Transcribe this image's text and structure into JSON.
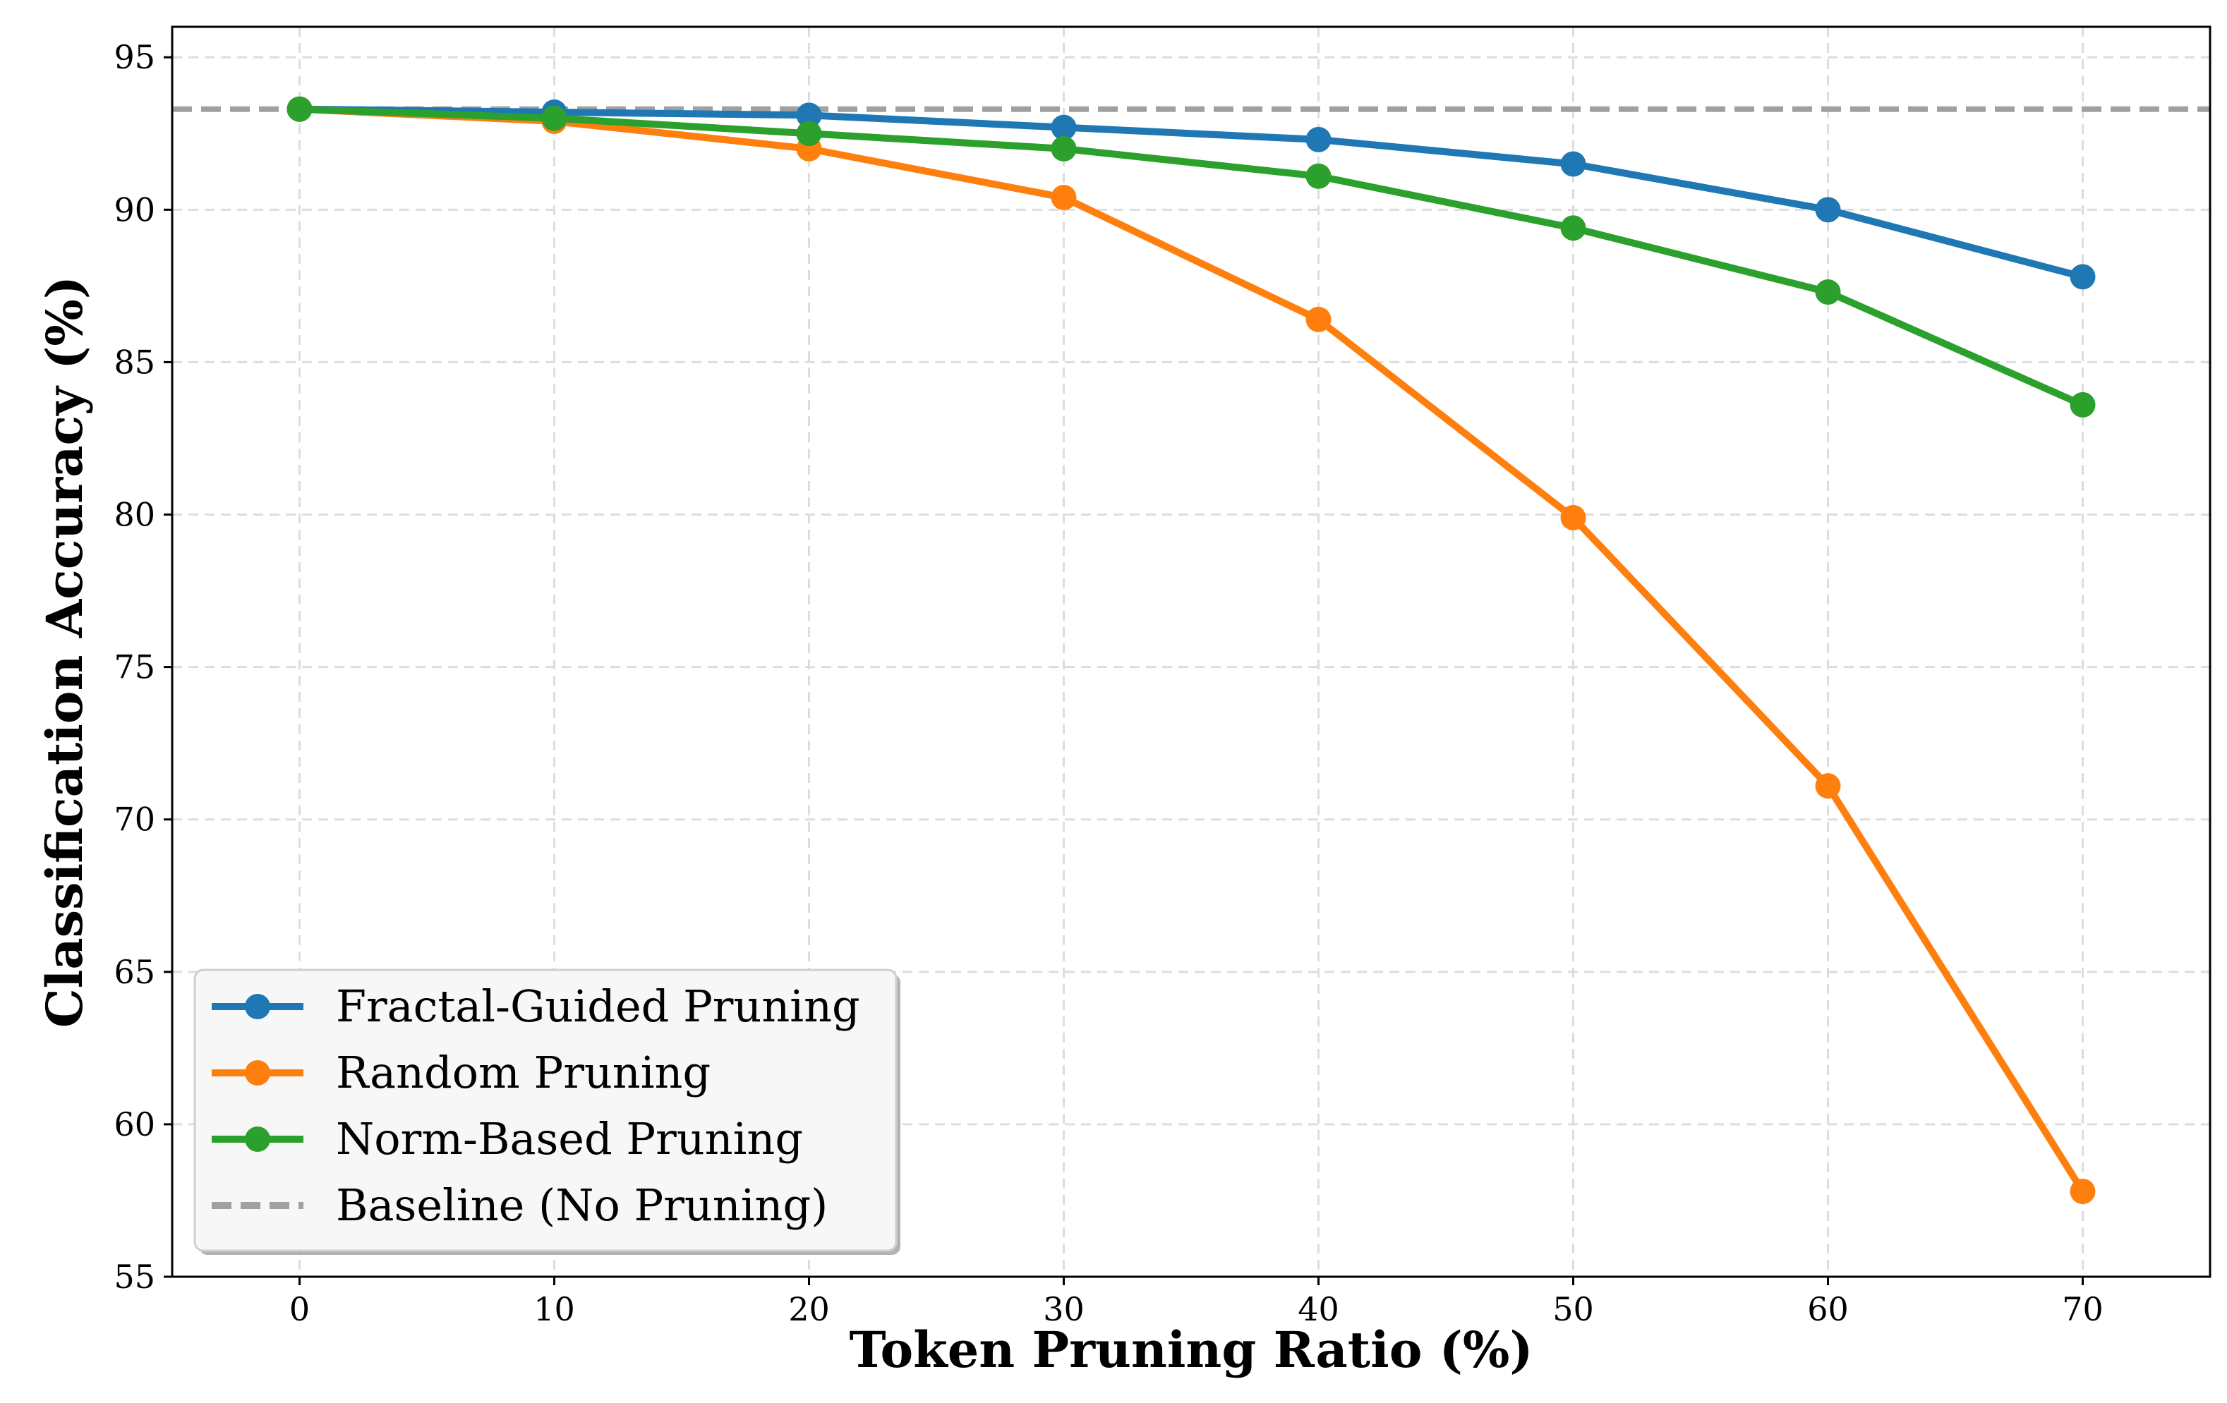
{
  "chart_data": {
    "type": "line",
    "xlabel": "Token Pruning Ratio (%)",
    "ylabel": "Classification Accuracy (%)",
    "x": [
      0,
      10,
      20,
      30,
      40,
      50,
      60,
      70
    ],
    "xlim": [
      -5,
      75
    ],
    "ylim": [
      55,
      96
    ],
    "x_ticks": [
      "0",
      "10",
      "20",
      "30",
      "40",
      "50",
      "60",
      "70"
    ],
    "y_ticks": [
      "55",
      "60",
      "65",
      "70",
      "75",
      "80",
      "85",
      "90",
      "95"
    ],
    "grid": true,
    "legend_position": "lower-left",
    "series": [
      {
        "name": "Fractal-Guided Pruning",
        "color": "#1f77b4",
        "values": [
          93.3,
          93.2,
          93.1,
          92.7,
          92.3,
          91.5,
          90.0,
          87.8
        ]
      },
      {
        "name": "Random Pruning",
        "color": "#ff7f0e",
        "values": [
          93.3,
          92.9,
          92.0,
          90.4,
          86.4,
          79.9,
          71.1,
          57.8
        ]
      },
      {
        "name": "Norm-Based Pruning",
        "color": "#2ca02c",
        "values": [
          93.3,
          93.0,
          92.5,
          92.0,
          91.1,
          89.4,
          87.3,
          83.6
        ]
      }
    ],
    "baseline": {
      "name": "Baseline (No Pruning)",
      "color": "#a0a0a0",
      "value": 93.3
    }
  }
}
